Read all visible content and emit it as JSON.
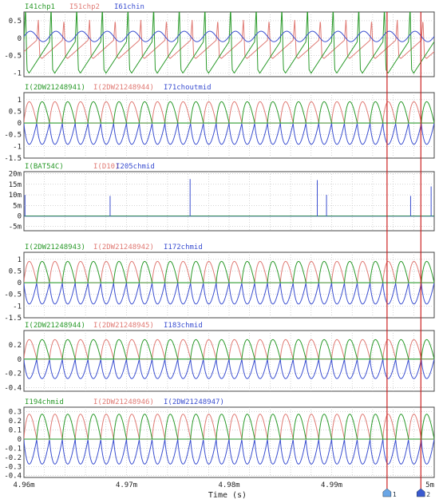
{
  "chart_data": {
    "type": "line",
    "xlabel": "Time (s)",
    "xlim": [
      4.96,
      5.0
    ],
    "x_unit": "m",
    "x_ticks": [
      {
        "value": 4.96,
        "label": "4.96m"
      },
      {
        "value": 4.97,
        "label": "4.97m"
      },
      {
        "value": 4.98,
        "label": "4.98m"
      },
      {
        "value": 4.99,
        "label": "4.99m"
      },
      {
        "value": 5.0,
        "label": "5m"
      }
    ],
    "cursors": [
      {
        "label": "1",
        "x": 4.9954
      },
      {
        "label": "2",
        "x": 4.9987
      }
    ],
    "grid": true,
    "colors": {
      "green": "#2a9a2a",
      "red": "#e07a74",
      "blue": "#3a4ed0",
      "cursor": "#cc2222"
    },
    "panels": [
      {
        "series": [
          {
            "name": "I41chp1",
            "color": "green"
          },
          {
            "name": "I51chp2",
            "color": "red"
          },
          {
            "name": "I61chin",
            "color": "blue"
          }
        ],
        "ylim": [
          -1.1,
          0.75
        ],
        "y_ticks": [
          {
            "value": 0.5,
            "label": "0.5"
          },
          {
            "value": 0,
            "label": "0"
          },
          {
            "value": -0.5,
            "label": "-0.5"
          },
          {
            "value": -1,
            "label": "-1"
          }
        ],
        "waveform": "chopper",
        "amplitude_pos": 0.55,
        "amplitude_neg": -1.0,
        "cycles": 16
      },
      {
        "series": [
          {
            "name": "I(2DW21248941)",
            "color": "green"
          },
          {
            "name": "I(2DW21248944)",
            "color": "red"
          },
          {
            "name": "I71choutmid",
            "color": "blue"
          }
        ],
        "ylim": [
          -1.5,
          1.3
        ],
        "y_ticks": [
          {
            "value": 1,
            "label": "1"
          },
          {
            "value": 0.5,
            "label": "0.5"
          },
          {
            "value": 0,
            "label": "0"
          },
          {
            "value": -0.5,
            "label": "-0.5"
          },
          {
            "value": -1,
            "label": "-1"
          },
          {
            "value": -1.5,
            "label": "-1.5"
          }
        ],
        "waveform": "diode",
        "amplitude": 1.0,
        "cycles": 16
      },
      {
        "series": [
          {
            "name": "I(BAT54C)",
            "color": "green"
          },
          {
            "name": "I(D10)",
            "color": "red"
          },
          {
            "name": "I205chmid",
            "color": "blue"
          }
        ],
        "ylim": [
          -7,
          21
        ],
        "y_ticks": [
          {
            "value": 20,
            "label": "20m"
          },
          {
            "value": 15,
            "label": "15m"
          },
          {
            "value": 10,
            "label": "10m"
          },
          {
            "value": 5,
            "label": "5m"
          },
          {
            "value": 0,
            "label": "0"
          },
          {
            "value": -5,
            "label": "-5m"
          }
        ],
        "waveform": "spikes",
        "spikes": [
          {
            "x": 4.9601,
            "y": 10
          },
          {
            "x": 4.9684,
            "y": 9.5
          },
          {
            "x": 4.9762,
            "y": 17.5
          },
          {
            "x": 4.9886,
            "y": 17
          },
          {
            "x": 4.9895,
            "y": 10
          },
          {
            "x": 4.9977,
            "y": 9.5
          },
          {
            "x": 4.9997,
            "y": 14
          }
        ]
      },
      {
        "series": [
          {
            "name": "I(2DW21248943)",
            "color": "green"
          },
          {
            "name": "I(2DW21248942)",
            "color": "red"
          },
          {
            "name": "I172chmid",
            "color": "blue"
          }
        ],
        "ylim": [
          -1.5,
          1.3
        ],
        "y_ticks": [
          {
            "value": 1,
            "label": "1"
          },
          {
            "value": 0.5,
            "label": "0.5"
          },
          {
            "value": 0,
            "label": "0"
          },
          {
            "value": -0.5,
            "label": "-0.5"
          },
          {
            "value": -1,
            "label": "-1"
          },
          {
            "value": -1.5,
            "label": "-1.5"
          }
        ],
        "waveform": "diode",
        "amplitude": 1.0,
        "cycles": 16
      },
      {
        "series": [
          {
            "name": "I(2DW21248944)",
            "color": "green"
          },
          {
            "name": "I(2DW21248945)",
            "color": "red"
          },
          {
            "name": "I183chmid",
            "color": "blue"
          }
        ],
        "ylim": [
          -0.45,
          0.4
        ],
        "y_ticks": [
          {
            "value": 0.2,
            "label": "0.2"
          },
          {
            "value": 0,
            "label": "0"
          },
          {
            "value": -0.2,
            "label": "-0.2"
          },
          {
            "value": -0.4,
            "label": "-0.4"
          }
        ],
        "waveform": "diode",
        "amplitude": 0.3,
        "cycles": 16
      },
      {
        "series": [
          {
            "name": "I194chmid",
            "color": "green"
          },
          {
            "name": "I(2DW21248946)",
            "color": "red"
          },
          {
            "name": "I(2DW21248947)",
            "color": "blue"
          }
        ],
        "ylim": [
          -0.42,
          0.35
        ],
        "y_ticks": [
          {
            "value": 0.3,
            "label": "0.3"
          },
          {
            "value": 0.2,
            "label": "0.2"
          },
          {
            "value": 0.1,
            "label": "0.1"
          },
          {
            "value": 0,
            "label": "0"
          },
          {
            "value": -0.1,
            "label": "-0.1"
          },
          {
            "value": -0.2,
            "label": "-0.2"
          },
          {
            "value": -0.3,
            "label": "-0.3"
          },
          {
            "value": -0.4,
            "label": "-0.4"
          }
        ],
        "waveform": "diode",
        "amplitude": 0.3,
        "cycles": 16
      }
    ]
  }
}
